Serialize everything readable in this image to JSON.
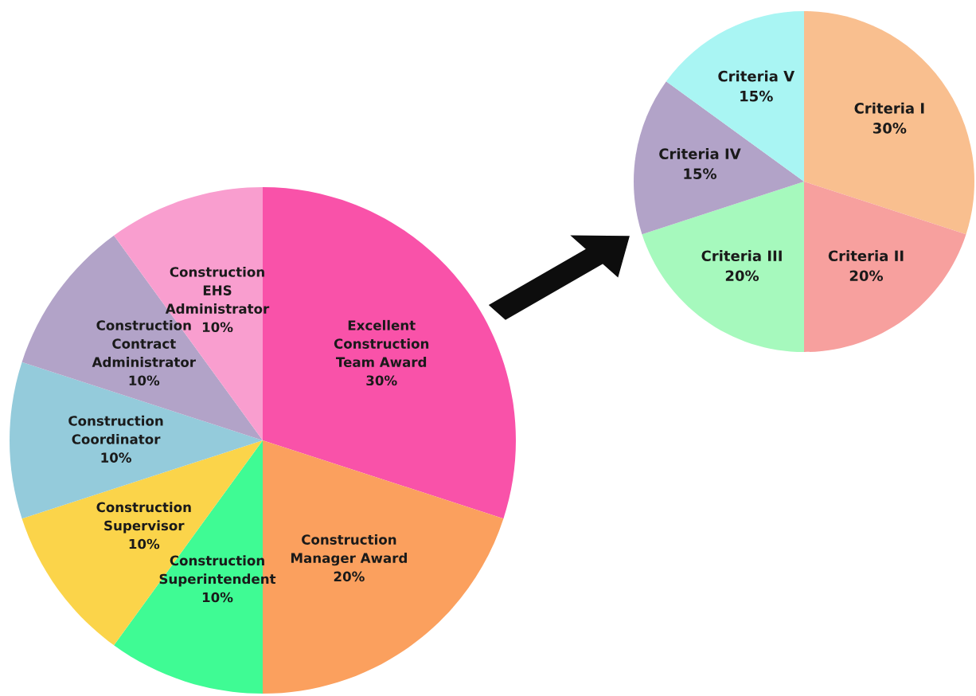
{
  "chart_data": [
    {
      "type": "pie",
      "categories": [
        "Excellent\nConstruction\nTeam Award",
        "Construction\nManager Award",
        "Construction\nSuperintendent",
        "Construction\nSupervisor",
        "Construction\nCoordinator",
        "Construction\nContract\nAdministrator",
        "Construction\nEHS\nAdministrator"
      ],
      "values": [
        30,
        20,
        10,
        10,
        10,
        10,
        10
      ],
      "colors": [
        "#f952a9",
        "#fba05e",
        "#3ffb94",
        "#fbd44a",
        "#94cbdb",
        "#b2a3c8",
        "#f99ecf"
      ],
      "value_labels": [
        "30%",
        "20%",
        "10%",
        "10%",
        "10%",
        "10%",
        "10%"
      ]
    },
    {
      "type": "pie",
      "categories": [
        "Criteria I",
        "Criteria II",
        "Criteria III",
        "Criteria IV",
        "Criteria V"
      ],
      "values": [
        30,
        20,
        20,
        15,
        15
      ],
      "colors": [
        "#f9bf8f",
        "#f7a09e",
        "#a6f9bd",
        "#b2a3c8",
        "#a9f5f3"
      ],
      "value_labels": [
        "30%",
        "20%",
        "20%",
        "15%",
        "15%"
      ]
    }
  ]
}
